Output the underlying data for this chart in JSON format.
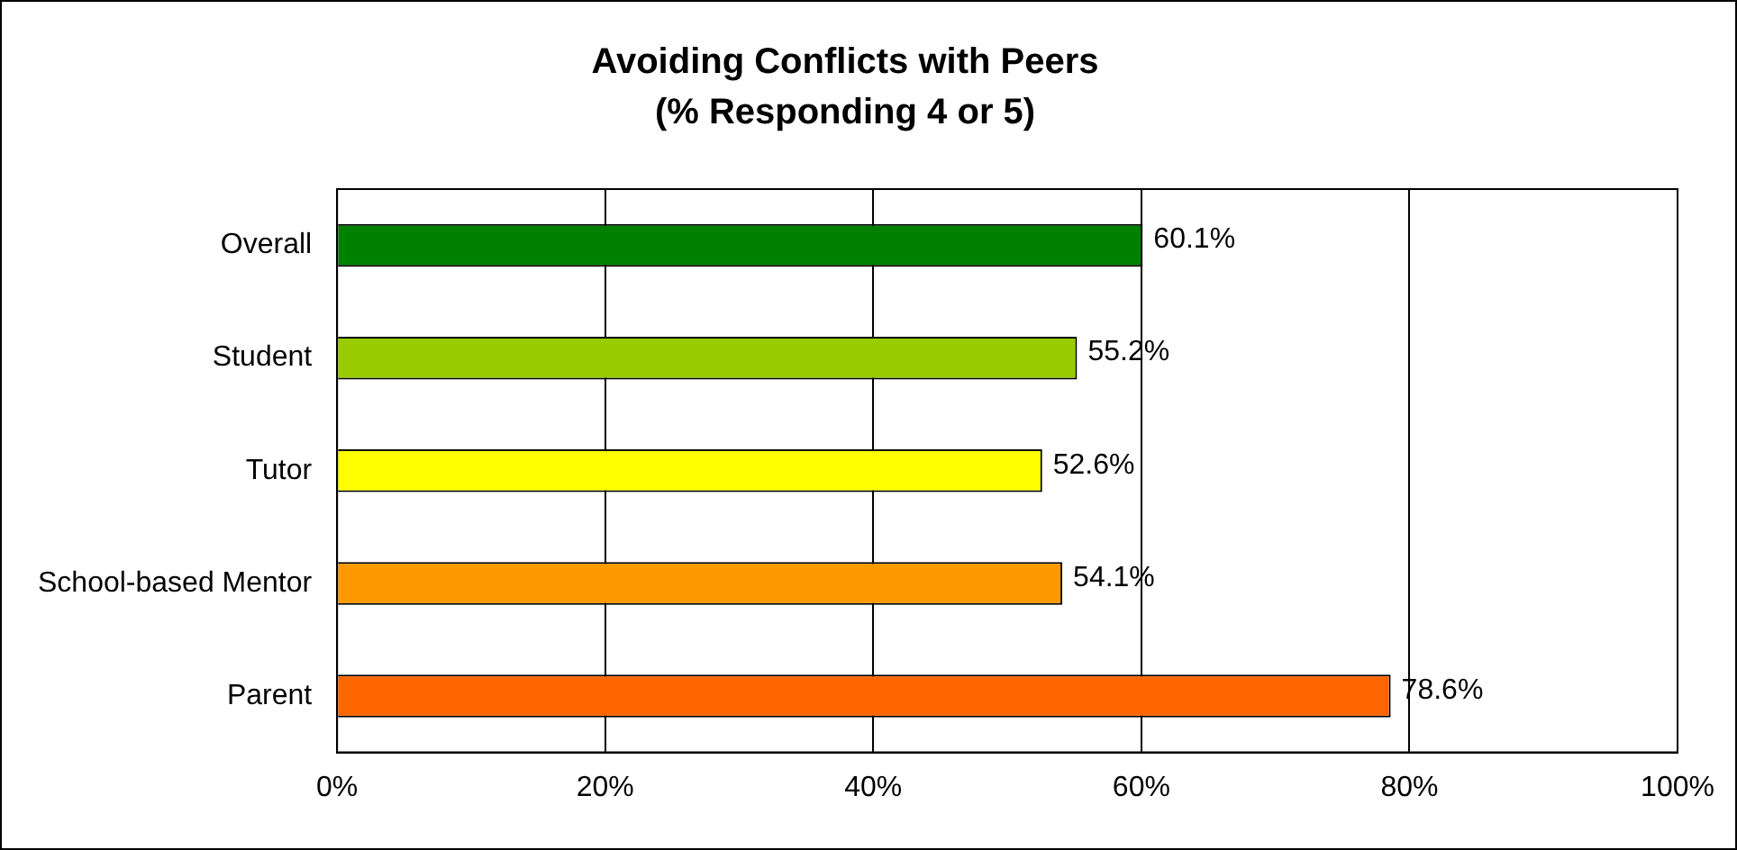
{
  "chart_data": {
    "type": "bar",
    "orientation": "horizontal",
    "title": "Avoiding Conflicts with Peers",
    "subtitle": "(% Responding 4 or 5)",
    "categories": [
      "Overall",
      "Student",
      "Tutor",
      "School-based Mentor",
      "Parent"
    ],
    "values": [
      60.1,
      55.2,
      52.6,
      54.1,
      78.6
    ],
    "colors": [
      "#008000",
      "#99cc00",
      "#ffff00",
      "#ff9900",
      "#ff6600"
    ],
    "value_labels": [
      "60.1%",
      "55.2%",
      "52.6%",
      "54.1%",
      "78.6%"
    ],
    "xlim": [
      0,
      100
    ],
    "xticks": [
      {
        "value": 0,
        "label": "0%"
      },
      {
        "value": 20,
        "label": "20%"
      },
      {
        "value": 40,
        "label": "40%"
      },
      {
        "value": 60,
        "label": "60%"
      },
      {
        "value": 80,
        "label": "80%"
      },
      {
        "value": 100,
        "label": "100%"
      }
    ],
    "grid": "x",
    "legend": false
  }
}
